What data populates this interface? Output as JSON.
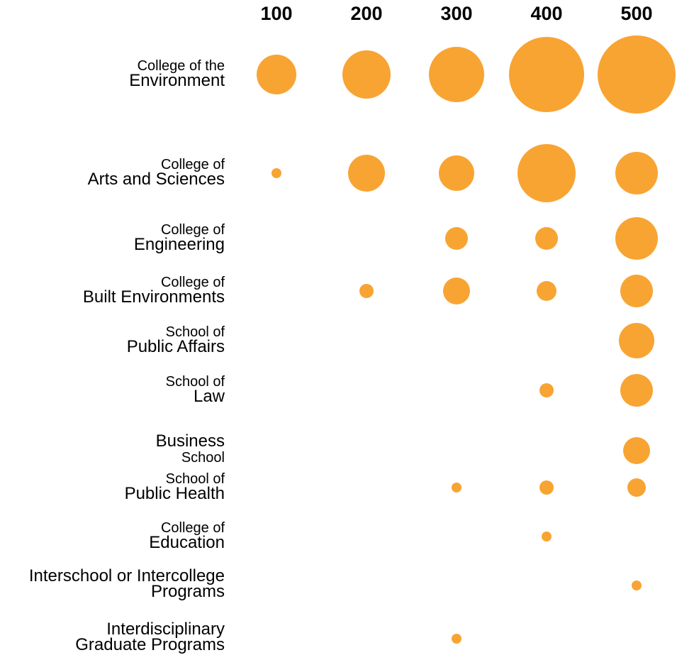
{
  "chart_data": {
    "type": "bubble-matrix",
    "title": "",
    "color": "#f8a433",
    "columns": [
      "100",
      "200",
      "300",
      "400",
      "500"
    ],
    "rows": [
      {
        "line1": "College of the",
        "line2": "Environment",
        "values": [
          28,
          34,
          39,
          53,
          55
        ]
      },
      {
        "line1": "College of",
        "line2": "Arts and Sciences",
        "values": [
          7,
          26,
          25,
          41,
          30
        ]
      },
      {
        "line1": "College of",
        "line2": "Engineering",
        "values": [
          null,
          null,
          16,
          16,
          30
        ]
      },
      {
        "line1": "College of",
        "line2": "Built Environments",
        "values": [
          null,
          10,
          19,
          14,
          23
        ]
      },
      {
        "line1": "School of",
        "line2": "Public Affairs",
        "values": [
          null,
          null,
          null,
          null,
          25
        ]
      },
      {
        "line1": "School of",
        "line2": "Law",
        "values": [
          null,
          null,
          null,
          10,
          23
        ]
      },
      {
        "line1": "Business",
        "line2": "School",
        "values": [
          null,
          null,
          null,
          null,
          19
        ],
        "first_line_large": true
      },
      {
        "line1": "School of",
        "line2": "Public Health",
        "values": [
          null,
          null,
          7,
          10,
          13
        ]
      },
      {
        "line1": "College of",
        "line2": "Education",
        "values": [
          null,
          null,
          null,
          7,
          null
        ]
      },
      {
        "line1": "Interschool or Intercollege",
        "line2": "Programs",
        "values": [
          null,
          null,
          null,
          null,
          7
        ],
        "both_lines_large": true
      },
      {
        "line1": "Interdisciplinary",
        "line2": "Graduate Programs",
        "values": [
          null,
          null,
          7,
          null,
          null
        ],
        "both_lines_large": true
      }
    ]
  }
}
